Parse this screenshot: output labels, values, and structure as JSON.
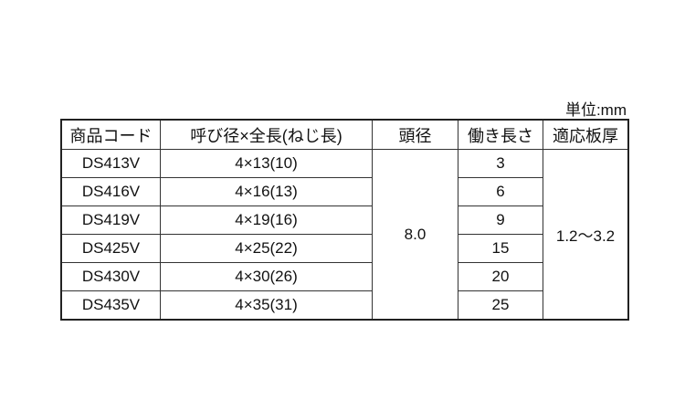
{
  "unit_label": "単位:mm",
  "headers": [
    "商品コード",
    "呼び径×全長(ねじ長)",
    "頭径",
    "働き長さ",
    "適応板厚"
  ],
  "rows": [
    {
      "code": "DS413V",
      "size": "4×13(10)",
      "work_length": "3"
    },
    {
      "code": "DS416V",
      "size": "4×16(13)",
      "work_length": "6"
    },
    {
      "code": "DS419V",
      "size": "4×19(16)",
      "work_length": "9"
    },
    {
      "code": "DS425V",
      "size": "4×25(22)",
      "work_length": "15"
    },
    {
      "code": "DS430V",
      "size": "4×30(26)",
      "work_length": "20"
    },
    {
      "code": "DS435V",
      "size": "4×35(31)",
      "work_length": "25"
    }
  ],
  "head_diameter": "8.0",
  "plate_thickness": "1.2～3.2"
}
